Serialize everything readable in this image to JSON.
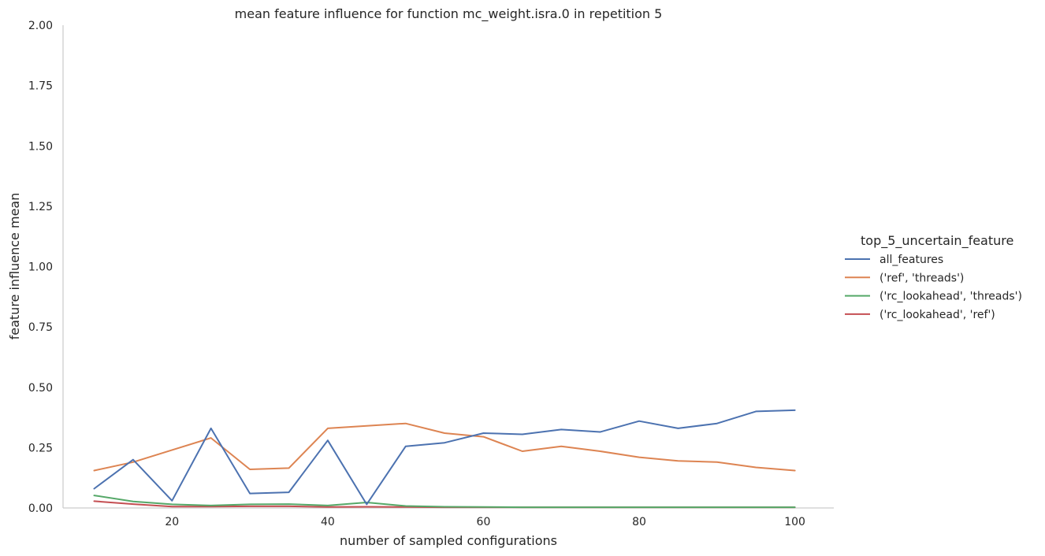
{
  "chart_data": {
    "type": "line",
    "title": "mean feature influence for function mc_weight.isra.0 in repetition 5",
    "xlabel": "number of sampled configurations",
    "ylabel": "feature influence mean",
    "xlim": [
      6,
      105
    ],
    "ylim": [
      0,
      2.0
    ],
    "xticks": [
      20,
      40,
      60,
      80,
      100
    ],
    "yticks": [
      0.0,
      0.25,
      0.5,
      0.75,
      1.0,
      1.25,
      1.5,
      1.75,
      2.0
    ],
    "ytick_labels": [
      "0.00",
      "0.25",
      "0.50",
      "0.75",
      "1.00",
      "1.25",
      "1.50",
      "1.75",
      "2.00"
    ],
    "grid": false,
    "legend": {
      "title": "top_5_uncertain_feature",
      "placement": "right"
    },
    "x": [
      10,
      15,
      20,
      25,
      30,
      35,
      40,
      45,
      50,
      55,
      60,
      65,
      70,
      75,
      80,
      85,
      90,
      95,
      100
    ],
    "series": [
      {
        "name": "all_features",
        "color": "#4c72b0",
        "values": [
          0.08,
          0.2,
          0.03,
          0.33,
          0.06,
          0.065,
          0.28,
          0.015,
          0.255,
          0.27,
          0.31,
          0.305,
          0.325,
          0.315,
          0.36,
          0.33,
          0.35,
          0.4,
          0.405
        ]
      },
      {
        "name": "('ref', 'threads')",
        "color": "#dd8452",
        "values": [
          0.155,
          0.19,
          0.24,
          0.29,
          0.16,
          0.165,
          0.33,
          0.34,
          0.35,
          0.31,
          0.295,
          0.235,
          0.255,
          0.235,
          0.21,
          0.195,
          0.19,
          0.168,
          0.155
        ]
      },
      {
        "name": "('rc_lookahead', 'threads')",
        "color": "#55a868",
        "values": [
          0.052,
          0.027,
          0.015,
          0.01,
          0.015,
          0.016,
          0.01,
          0.023,
          0.008,
          0.005,
          0.004,
          0.003,
          0.003,
          0.003,
          0.003,
          0.003,
          0.003,
          0.003,
          0.003
        ]
      },
      {
        "name": "('rc_lookahead', 'ref')",
        "color": "#c44e52",
        "values": [
          0.028,
          0.016,
          0.006,
          0.006,
          0.007,
          0.007,
          0.004,
          0.005,
          0.004,
          0.003,
          0.003,
          0.003,
          0.003,
          0.003,
          0.003,
          0.003,
          0.003,
          0.003,
          0.003
        ]
      }
    ]
  }
}
